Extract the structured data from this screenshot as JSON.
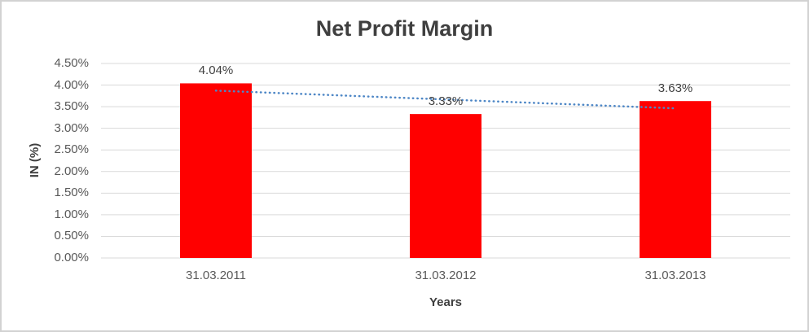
{
  "window": {
    "background": "#FFFFFF",
    "border_color": "#D2D2D2"
  },
  "chart_data": {
    "type": "bar",
    "title": "Net Profit Margin",
    "xlabel": "Years",
    "ylabel": "IN (%)",
    "categories": [
      "31.03.2011",
      "31.03.2012",
      "31.03.2013"
    ],
    "values": [
      4.04,
      3.33,
      3.63
    ],
    "data_labels": [
      "4.04%",
      "3.33%",
      "3.63%"
    ],
    "ylim": [
      0,
      4.5
    ],
    "ytick_step": 0.5,
    "ytick_labels": [
      "0.00%",
      "0.50%",
      "1.00%",
      "1.50%",
      "2.00%",
      "2.50%",
      "3.00%",
      "3.50%",
      "4.00%",
      "4.50%"
    ],
    "grid": true,
    "legend": "none",
    "trendline": {
      "type": "linear",
      "style": "dotted",
      "color": "#4E87C6"
    },
    "colors": {
      "bar": "#FF0000",
      "gridline": "#D9D9D9",
      "title_text": "#3F3F3F",
      "tick_text": "#595959",
      "data_label_text": "#404040"
    }
  }
}
